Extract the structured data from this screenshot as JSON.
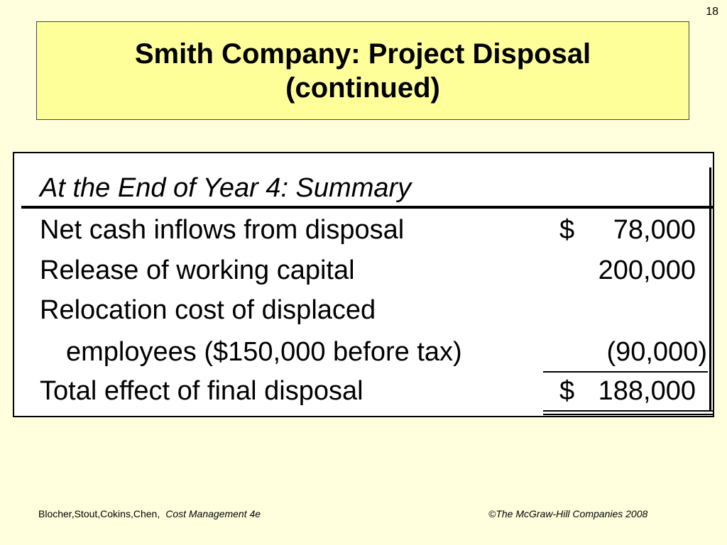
{
  "slide_number": "18",
  "title": {
    "line1": "Smith Company: Project Disposal",
    "line2": "(continued)"
  },
  "table": {
    "header": "At the End of Year 4: Summary",
    "rows": [
      {
        "label": "Net cash inflows from disposal",
        "currency": "$",
        "amount": "78,000"
      },
      {
        "label": "Release of working capital",
        "currency": "",
        "amount": "200,000"
      },
      {
        "label": "Relocation cost of displaced",
        "currency": "",
        "amount": ""
      },
      {
        "label": "employees ($150,000 before tax)",
        "currency": "",
        "amount": "(90,000)"
      },
      {
        "label": "Total effect of final disposal",
        "currency": "$",
        "amount": "188,000"
      }
    ]
  },
  "footer": {
    "authors": "Blocher,Stout,Cokins,Chen,",
    "book": "Cost Management 4e",
    "copyright": "©The McGraw-Hill Companies 2008"
  }
}
